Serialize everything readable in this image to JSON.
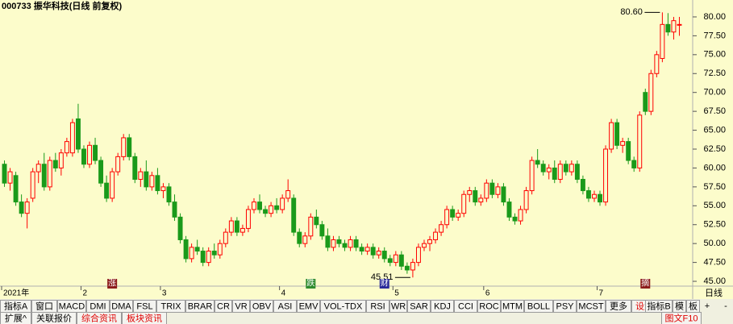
{
  "chart_data": {
    "type": "candlestick",
    "title": "000733 振华科技(日线 前复权)",
    "ylim": [
      44.47,
      81.17
    ],
    "yticks": [
      {
        "value": 45,
        "label": "45.00"
      },
      {
        "value": 47.5,
        "label": "47.50"
      },
      {
        "value": 50,
        "label": "50.00"
      },
      {
        "value": 52.5,
        "label": "52.50"
      },
      {
        "value": 55,
        "label": "55.00"
      },
      {
        "value": 57.5,
        "label": "57.50"
      },
      {
        "value": 60,
        "label": "60.00"
      },
      {
        "value": 62.5,
        "label": "62.50"
      },
      {
        "value": 65,
        "label": "65.00"
      },
      {
        "value": 67.5,
        "label": "67.50"
      },
      {
        "value": 70,
        "label": "70.00"
      },
      {
        "value": 72.5,
        "label": "72.50"
      },
      {
        "value": 75,
        "label": "75.00"
      },
      {
        "value": 77.5,
        "label": "77.50"
      },
      {
        "value": 80,
        "label": "80.00"
      }
    ],
    "xticks": [
      {
        "value": 0,
        "label": "2021年"
      },
      {
        "value": 14,
        "label": "2"
      },
      {
        "value": 28,
        "label": "3"
      },
      {
        "value": 49,
        "label": "4"
      },
      {
        "value": 69,
        "label": "5"
      },
      {
        "value": 85,
        "label": "6"
      },
      {
        "value": 105,
        "label": "7"
      }
    ],
    "up_color": "#ff0000",
    "down_color": "#1a9a1a",
    "grid": false,
    "annotations": [
      {
        "index": 116,
        "value": 80.6,
        "label": "80.60"
      },
      {
        "index": 72,
        "value": 45.51,
        "label": "45.51"
      }
    ],
    "events": [
      {
        "index": 19,
        "label": "涨",
        "color": "#8b1a1a"
      },
      {
        "index": 54,
        "label": "跌",
        "color": "#2e8b2e"
      },
      {
        "index": 67,
        "label": "财",
        "color": "#2a2a9a"
      },
      {
        "index": 113,
        "label": "摘",
        "color": "#8b1a1a"
      }
    ],
    "ohlc": [
      [
        60.5,
        61,
        57.5,
        58
      ],
      [
        58,
        60,
        57,
        59.5
      ],
      [
        59,
        59.5,
        55,
        55.5
      ],
      [
        55.5,
        56.5,
        53.5,
        54
      ],
      [
        54,
        56,
        52,
        55.5
      ],
      [
        56,
        60,
        55.5,
        59.5
      ],
      [
        59.5,
        61,
        58,
        60.5
      ],
      [
        60.5,
        62,
        57,
        57.5
      ],
      [
        57.5,
        61.5,
        57,
        61
      ],
      [
        61,
        62,
        59.5,
        60
      ],
      [
        60,
        62.5,
        59,
        62
      ],
      [
        62,
        64,
        61.5,
        63.5
      ],
      [
        62,
        66.5,
        61.5,
        66
      ],
      [
        66.5,
        68.5,
        62,
        62.5
      ],
      [
        62.5,
        63,
        60,
        60.5
      ],
      [
        60.5,
        63.5,
        60,
        63
      ],
      [
        63,
        64,
        60.5,
        61
      ],
      [
        61,
        61.5,
        57.5,
        58
      ],
      [
        58,
        59,
        55.5,
        56
      ],
      [
        56,
        60,
        55.5,
        59.5
      ],
      [
        59.5,
        62,
        59,
        61.5
      ],
      [
        61.5,
        64.5,
        61,
        64
      ],
      [
        64,
        64.5,
        61,
        61.5
      ],
      [
        61.5,
        62,
        58,
        58.5
      ],
      [
        58.5,
        60,
        57.5,
        59.5
      ],
      [
        59.5,
        61,
        57,
        57.5
      ],
      [
        57.5,
        59.5,
        57,
        59
      ],
      [
        59,
        60,
        56.5,
        57
      ],
      [
        57,
        58,
        56,
        57.5
      ],
      [
        57.5,
        58,
        55,
        55.5
      ],
      [
        55.5,
        56.5,
        53,
        53.5
      ],
      [
        53.5,
        54,
        50,
        50.5
      ],
      [
        50.5,
        51,
        47.5,
        48
      ],
      [
        48,
        50,
        47.5,
        49.5
      ],
      [
        49.5,
        50.5,
        48.5,
        49
      ],
      [
        49,
        49.5,
        47,
        47.5
      ],
      [
        47.5,
        49.5,
        47,
        49
      ],
      [
        49,
        50,
        48,
        48.5
      ],
      [
        48.5,
        50.5,
        48,
        50
      ],
      [
        50,
        52,
        49.5,
        51.5
      ],
      [
        51.5,
        53.5,
        51,
        53
      ],
      [
        53,
        53.5,
        51,
        51.5
      ],
      [
        51.5,
        52.5,
        51,
        52
      ],
      [
        52,
        55,
        51.5,
        54.5
      ],
      [
        54.5,
        56,
        54,
        55.5
      ],
      [
        55.5,
        56.5,
        54,
        54.5
      ],
      [
        54.5,
        55,
        53.5,
        54
      ],
      [
        54,
        55.5,
        53.5,
        55
      ],
      [
        55,
        56,
        54,
        54.5
      ],
      [
        54.5,
        56.5,
        54,
        56
      ],
      [
        56,
        58.5,
        55.5,
        57
      ],
      [
        56,
        56.5,
        51,
        51.5
      ],
      [
        51.5,
        52,
        49.5,
        50
      ],
      [
        50,
        51.5,
        49.5,
        51
      ],
      [
        51,
        54,
        50.5,
        53.5
      ],
      [
        53.5,
        54.5,
        52,
        52.5
      ],
      [
        52.5,
        53,
        50.5,
        51
      ],
      [
        51,
        52,
        49,
        49.5
      ],
      [
        49.5,
        51,
        49,
        50.5
      ],
      [
        50.5,
        51,
        49.5,
        50
      ],
      [
        50,
        50.5,
        49,
        49.5
      ],
      [
        49.5,
        51,
        49,
        50.5
      ],
      [
        50.5,
        51,
        49,
        49.5
      ],
      [
        49.5,
        50,
        48.5,
        49
      ],
      [
        49,
        50,
        48.5,
        49.5
      ],
      [
        49.5,
        50,
        48,
        48.5
      ],
      [
        48.5,
        49.5,
        48,
        49
      ],
      [
        49,
        49.5,
        47.5,
        48
      ],
      [
        48,
        48.5,
        47,
        47.5
      ],
      [
        47.5,
        49,
        47,
        48.5
      ],
      [
        48.5,
        49,
        46.5,
        47
      ],
      [
        47,
        47.5,
        46,
        46.5
      ],
      [
        46.5,
        48,
        45.51,
        47.5
      ],
      [
        47.5,
        50,
        47,
        49.5
      ],
      [
        49.5,
        50.5,
        49,
        50
      ],
      [
        50,
        51,
        49,
        50.5
      ],
      [
        50.5,
        52,
        50,
        51.5
      ],
      [
        51.5,
        53,
        51,
        52.5
      ],
      [
        52.5,
        55,
        52,
        54.5
      ],
      [
        54.5,
        55,
        53,
        53.5
      ],
      [
        53.5,
        54.5,
        53,
        54
      ],
      [
        54,
        57,
        53.5,
        56.5
      ],
      [
        56.5,
        57.5,
        55.5,
        57
      ],
      [
        57,
        57.5,
        55,
        55.5
      ],
      [
        55.5,
        56.5,
        55,
        56
      ],
      [
        56,
        58.5,
        55.5,
        58
      ],
      [
        58,
        58.5,
        56,
        56.5
      ],
      [
        56.5,
        58,
        56,
        57.5
      ],
      [
        57.5,
        58,
        55,
        55.5
      ],
      [
        55.5,
        56,
        53,
        53.5
      ],
      [
        53.5,
        54,
        52.5,
        53
      ],
      [
        53,
        55,
        52.5,
        54.5
      ],
      [
        54.5,
        57.5,
        54,
        57
      ],
      [
        57,
        61.5,
        56.5,
        61
      ],
      [
        61,
        62.5,
        60,
        60.5
      ],
      [
        60.5,
        61,
        59,
        59.5
      ],
      [
        59.5,
        60.5,
        58.5,
        60
      ],
      [
        60,
        61,
        58,
        58.5
      ],
      [
        58.5,
        61,
        58,
        60.5
      ],
      [
        60.5,
        61,
        59,
        59.5
      ],
      [
        59.5,
        61,
        59,
        60.5
      ],
      [
        60.5,
        61,
        58,
        58.5
      ],
      [
        58.5,
        59,
        56.5,
        57
      ],
      [
        57,
        57.5,
        55.5,
        56
      ],
      [
        56,
        57,
        55.5,
        56.5
      ],
      [
        56.5,
        57,
        55,
        55.5
      ],
      [
        55.5,
        63,
        55,
        62.5
      ],
      [
        62.5,
        66.5,
        62,
        66
      ],
      [
        66,
        66.5,
        62.5,
        63
      ],
      [
        63,
        64,
        62,
        63.5
      ],
      [
        63.5,
        64,
        60.5,
        61
      ],
      [
        61,
        61.5,
        59.5,
        60
      ],
      [
        60,
        67.5,
        59.5,
        67
      ],
      [
        70,
        70.5,
        67,
        67.5
      ],
      [
        67.5,
        73,
        67,
        72.5
      ],
      [
        72.5,
        75.5,
        72,
        75
      ],
      [
        74.5,
        80.6,
        74,
        79
      ],
      [
        79,
        80.5,
        77.5,
        78
      ],
      [
        78,
        80,
        77,
        79.5
      ],
      [
        79,
        80,
        77.5,
        79
      ]
    ]
  },
  "side": {
    "period": "日线",
    "plus": "+",
    "minus": "-"
  },
  "toolbar": {
    "left": [
      "指标A",
      "窗口",
      "MACD",
      "DMI",
      "DMA",
      "FSL",
      "TRIX",
      "BRAR",
      "CR",
      "VR",
      "OBV",
      "ASI",
      "EMV",
      "VOL-TDX",
      "RSI",
      "WR",
      "SAR",
      "KDJ",
      "CCI",
      "ROC",
      "MTM",
      "BOLL",
      "PSY",
      "MCST",
      "更多",
      "设置"
    ],
    "right": [
      "指标B",
      "模",
      "板"
    ]
  },
  "bottom_tabs": {
    "left": [
      "扩展^",
      "关联报价",
      "综合资讯",
      "板块资讯"
    ],
    "right": [
      "图文F10"
    ]
  }
}
